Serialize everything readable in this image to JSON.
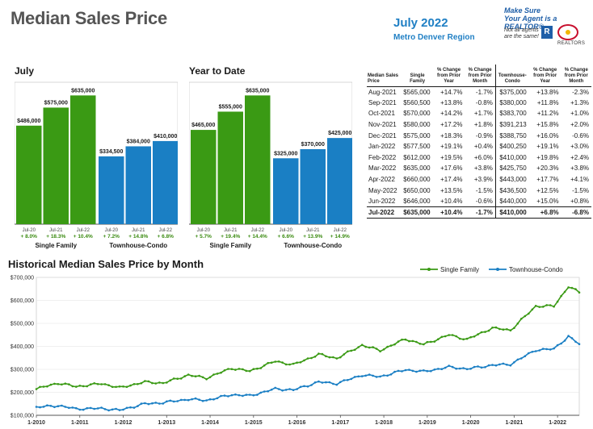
{
  "header": {
    "title": "Median Sales Price",
    "month": "July 2022",
    "region": "Metro Denver Region"
  },
  "brand": {
    "tagline_1": "Make Sure",
    "tagline_2": "Your Agent is a REALTOR®",
    "note": "Not all agents are the same!",
    "realtor_mark": "R",
    "colorado_text": "REALTORS"
  },
  "colors": {
    "single_family": "#3a9a14",
    "townhouse_condo": "#1a7fc4",
    "pct_green": "#3a8a10",
    "axis_gray": "#444444"
  },
  "chart_data": [
    {
      "type": "bar",
      "title": "July",
      "groups": [
        {
          "name": "Single Family",
          "categories": [
            "Jul-20",
            "Jul-21",
            "Jul-22"
          ],
          "values": [
            486000,
            575000,
            635000
          ],
          "value_labels": [
            "$486,000",
            "$575,000",
            "$635,000"
          ],
          "pct_changes": [
            "+ 8.0%",
            "+ 18.3%",
            "+ 10.4%"
          ]
        },
        {
          "name": "Townhouse-Condo",
          "categories": [
            "Jul-20",
            "Jul-21",
            "Jul-22"
          ],
          "values": [
            334500,
            384000,
            410000
          ],
          "value_labels": [
            "$334,500",
            "$384,000",
            "$410,000"
          ],
          "pct_changes": [
            "+ 7.2%",
            "+ 14.8%",
            "+ 6.8%"
          ]
        }
      ],
      "ylim": [
        0,
        700000
      ]
    },
    {
      "type": "bar",
      "title": "Year to Date",
      "groups": [
        {
          "name": "Single Family",
          "categories": [
            "Jul-20",
            "Jul-21",
            "Jul-22"
          ],
          "values": [
            465000,
            555000,
            635000
          ],
          "value_labels": [
            "$465,000",
            "$555,000",
            "$635,000"
          ],
          "pct_changes": [
            "+ 5.7%",
            "+ 19.4%",
            "+ 14.4%"
          ]
        },
        {
          "name": "Townhouse-Condo",
          "categories": [
            "Jul-20",
            "Jul-21",
            "Jul-22"
          ],
          "values": [
            325000,
            370000,
            425000
          ],
          "value_labels": [
            "$325,000",
            "$370,000",
            "$425,000"
          ],
          "pct_changes": [
            "+ 6.6%",
            "+ 13.9%",
            "+ 14.9%"
          ]
        }
      ],
      "ylim": [
        0,
        700000
      ]
    },
    {
      "type": "table",
      "columns": [
        "Median Sales Price",
        "Single Family",
        "% Change from Prior Year",
        "% Change from Prior Month",
        "Townhouse-Condo",
        "% Change from Prior Year",
        "% Change from Prior Month"
      ],
      "rows": [
        [
          "Aug-2021",
          "$565,000",
          "+14.7%",
          "-1.7%",
          "$375,000",
          "+13.8%",
          "-2.3%"
        ],
        [
          "Sep-2021",
          "$560,500",
          "+13.8%",
          "-0.8%",
          "$380,000",
          "+11.8%",
          "+1.3%"
        ],
        [
          "Oct-2021",
          "$570,000",
          "+14.2%",
          "+1.7%",
          "$383,700",
          "+11.2%",
          "+1.0%"
        ],
        [
          "Nov-2021",
          "$580,000",
          "+17.2%",
          "+1.8%",
          "$391,213",
          "+15.8%",
          "+2.0%"
        ],
        [
          "Dec-2021",
          "$575,000",
          "+18.3%",
          "-0.9%",
          "$388,750",
          "+16.0%",
          "-0.6%"
        ],
        [
          "Jan-2022",
          "$577,500",
          "+19.1%",
          "+0.4%",
          "$400,250",
          "+19.1%",
          "+3.0%"
        ],
        [
          "Feb-2022",
          "$612,000",
          "+19.5%",
          "+6.0%",
          "$410,000",
          "+19.8%",
          "+2.4%"
        ],
        [
          "Mar-2022",
          "$635,000",
          "+17.6%",
          "+3.8%",
          "$425,750",
          "+20.3%",
          "+3.8%"
        ],
        [
          "Apr-2022",
          "$660,000",
          "+17.4%",
          "+3.9%",
          "$443,000",
          "+17.7%",
          "+4.1%"
        ],
        [
          "May-2022",
          "$650,000",
          "+13.5%",
          "-1.5%",
          "$436,500",
          "+12.5%",
          "-1.5%"
        ],
        [
          "Jun-2022",
          "$646,000",
          "+10.4%",
          "-0.6%",
          "$440,000",
          "+15.0%",
          "+0.8%"
        ],
        [
          "Jul-2022",
          "$635,000",
          "+10.4%",
          "-1.7%",
          "$410,000",
          "+6.8%",
          "-6.8%"
        ]
      ]
    },
    {
      "type": "line",
      "title": "Historical Median Sales Price by Month",
      "x_ticks": [
        "1-2010",
        "1-2011",
        "1-2012",
        "1-2013",
        "1-2014",
        "1-2015",
        "1-2016",
        "1-2017",
        "1-2018",
        "1-2019",
        "1-2020",
        "1-2021",
        "1-2022"
      ],
      "y_ticks": [
        "$100,000",
        "$200,000",
        "$300,000",
        "$400,000",
        "$500,000",
        "$600,000",
        "$700,000"
      ],
      "ylim": [
        100000,
        700000
      ],
      "x_range": [
        "2010-01",
        "2022-07"
      ],
      "series": [
        {
          "name": "Single Family",
          "anchors": [
            [
              "2010-01",
              215000
            ],
            [
              "2010-07",
              240000
            ],
            [
              "2010-12",
              225000
            ],
            [
              "2011-07",
              238000
            ],
            [
              "2011-12",
              220000
            ],
            [
              "2012-07",
              245000
            ],
            [
              "2012-12",
              240000
            ],
            [
              "2013-07",
              275000
            ],
            [
              "2013-12",
              262000
            ],
            [
              "2014-07",
              305000
            ],
            [
              "2014-12",
              292000
            ],
            [
              "2015-07",
              335000
            ],
            [
              "2015-12",
              320000
            ],
            [
              "2016-07",
              365000
            ],
            [
              "2016-12",
              348000
            ],
            [
              "2017-07",
              405000
            ],
            [
              "2017-12",
              382000
            ],
            [
              "2018-07",
              432000
            ],
            [
              "2018-12",
              408000
            ],
            [
              "2019-07",
              450000
            ],
            [
              "2019-12",
              430000
            ],
            [
              "2020-07",
              480000
            ],
            [
              "2020-12",
              470000
            ],
            [
              "2021-07",
              575000
            ],
            [
              "2021-12",
              575000
            ],
            [
              "2022-04",
              660000
            ],
            [
              "2022-07",
              635000
            ]
          ]
        },
        {
          "name": "Townhouse-Condo",
          "anchors": [
            [
              "2010-01",
              135000
            ],
            [
              "2010-07",
              142000
            ],
            [
              "2010-12",
              128000
            ],
            [
              "2011-07",
              130000
            ],
            [
              "2011-12",
              122000
            ],
            [
              "2012-07",
              150000
            ],
            [
              "2012-12",
              155000
            ],
            [
              "2013-07",
              170000
            ],
            [
              "2013-12",
              165000
            ],
            [
              "2014-07",
              190000
            ],
            [
              "2014-12",
              185000
            ],
            [
              "2015-07",
              215000
            ],
            [
              "2015-12",
              210000
            ],
            [
              "2016-07",
              245000
            ],
            [
              "2016-12",
              238000
            ],
            [
              "2017-07",
              275000
            ],
            [
              "2017-12",
              268000
            ],
            [
              "2018-07",
              298000
            ],
            [
              "2018-12",
              290000
            ],
            [
              "2019-07",
              310000
            ],
            [
              "2019-12",
              302000
            ],
            [
              "2020-07",
              318000
            ],
            [
              "2020-12",
              322000
            ],
            [
              "2021-07",
              384000
            ],
            [
              "2021-12",
              388750
            ],
            [
              "2022-04",
              443000
            ],
            [
              "2022-07",
              410000
            ]
          ]
        }
      ]
    }
  ]
}
